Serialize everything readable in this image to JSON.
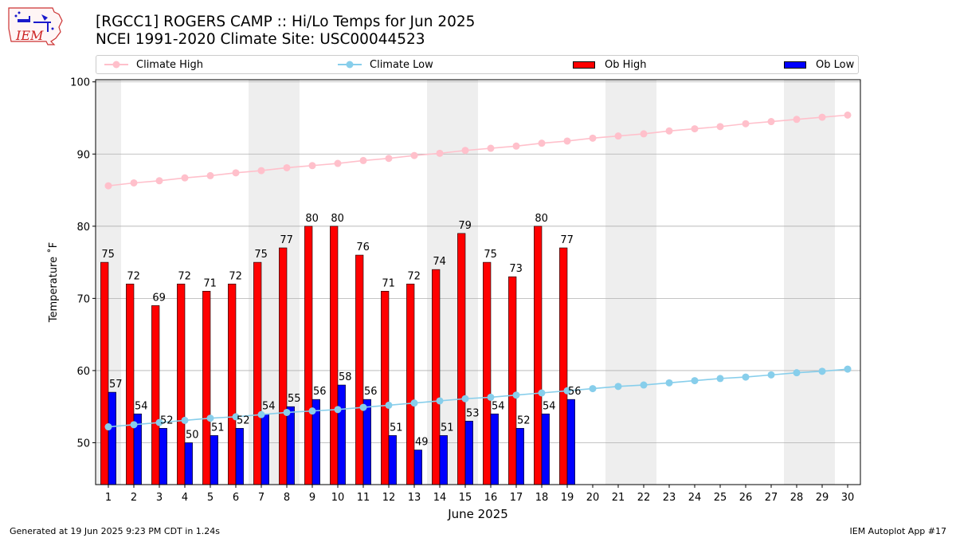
{
  "header": {
    "title_line1": "[RGCC1] ROGERS CAMP :: Hi/Lo Temps for Jun 2025",
    "title_line2": "NCEI 1991-2020 Climate Site: USC00044523",
    "logo_text": "IEM"
  },
  "legend": {
    "climate_high": "Climate High",
    "climate_low": "Climate Low",
    "ob_high": "Ob High",
    "ob_low": "Ob Low"
  },
  "footer": {
    "left": "Generated at 19 Jun 2025 9:23 PM CDT in 1.24s",
    "right": "IEM Autoplot App #17"
  },
  "colors": {
    "climate_high": "#ffc0cb",
    "climate_low": "#87ceeb",
    "ob_high": "#ff0000",
    "ob_low": "#0000ff",
    "weekend_shade": "#eeeeee",
    "grid": "#b0b0b0"
  },
  "chart_data": {
    "type": "bar",
    "xlabel": "June 2025",
    "ylabel": "Temperature $^\\circ$F",
    "xlim": [
      0.5,
      30.5
    ],
    "ylim": [
      44.2,
      100.3
    ],
    "yticks": [
      50,
      60,
      70,
      80,
      90,
      100
    ],
    "grid": "horizontal",
    "legend_position": "top",
    "days": [
      1,
      2,
      3,
      4,
      5,
      6,
      7,
      8,
      9,
      10,
      11,
      12,
      13,
      14,
      15,
      16,
      17,
      18,
      19,
      20,
      21,
      22,
      23,
      24,
      25,
      26,
      27,
      28,
      29,
      30
    ],
    "weekend_shade_ranges": [
      [
        0.5,
        1.5
      ],
      [
        6.5,
        8.5
      ],
      [
        13.5,
        15.5
      ],
      [
        20.5,
        22.5
      ],
      [
        27.5,
        29.5
      ]
    ],
    "series": [
      {
        "name": "Ob High",
        "kind": "bar",
        "x": [
          1,
          2,
          3,
          4,
          5,
          6,
          7,
          8,
          9,
          10,
          11,
          12,
          13,
          14,
          15,
          16,
          17,
          18,
          19
        ],
        "values": [
          75,
          72,
          69,
          72,
          71,
          72,
          75,
          77,
          80,
          80,
          76,
          71,
          72,
          74,
          79,
          75,
          73,
          80,
          77
        ],
        "labels": [
          "75",
          "72",
          "69",
          "72",
          "71",
          "72",
          "75",
          "77",
          "80",
          "80",
          "76",
          "71",
          "72",
          "74",
          "79",
          "75",
          "73",
          "80",
          "77"
        ]
      },
      {
        "name": "Ob Low",
        "kind": "bar",
        "x": [
          1,
          2,
          3,
          4,
          5,
          6,
          7,
          8,
          9,
          10,
          11,
          12,
          13,
          14,
          15,
          16,
          17,
          18,
          19
        ],
        "values": [
          57,
          54,
          52,
          50,
          51,
          52,
          54,
          55,
          56,
          58,
          56,
          51,
          49,
          51,
          53,
          54,
          52,
          54,
          56
        ],
        "labels": [
          "57",
          "54",
          "52",
          "50",
          "51",
          "52",
          "54",
          "55",
          "56",
          "58",
          "56",
          "51",
          "49",
          "51",
          "53",
          "54",
          "52",
          "54",
          "56"
        ]
      },
      {
        "name": "Climate High",
        "kind": "line",
        "x": [
          1,
          2,
          3,
          4,
          5,
          6,
          7,
          8,
          9,
          10,
          11,
          12,
          13,
          14,
          15,
          16,
          17,
          18,
          19,
          20,
          21,
          22,
          23,
          24,
          25,
          26,
          27,
          28,
          29,
          30
        ],
        "values": [
          85.6,
          86.0,
          86.3,
          86.7,
          87.0,
          87.4,
          87.7,
          88.1,
          88.4,
          88.7,
          89.1,
          89.4,
          89.8,
          90.1,
          90.5,
          90.8,
          91.1,
          91.5,
          91.8,
          92.2,
          92.5,
          92.8,
          93.2,
          93.5,
          93.8,
          94.2,
          94.5,
          94.8,
          95.1,
          95.4
        ]
      },
      {
        "name": "Climate Low",
        "kind": "line",
        "x": [
          1,
          2,
          3,
          4,
          5,
          6,
          7,
          8,
          9,
          10,
          11,
          12,
          13,
          14,
          15,
          16,
          17,
          18,
          19,
          20,
          21,
          22,
          23,
          24,
          25,
          26,
          27,
          28,
          29,
          30
        ],
        "values": [
          52.2,
          52.5,
          52.8,
          53.1,
          53.4,
          53.6,
          53.9,
          54.2,
          54.4,
          54.6,
          54.9,
          55.2,
          55.5,
          55.8,
          56.1,
          56.3,
          56.6,
          56.9,
          57.2,
          57.5,
          57.8,
          58.0,
          58.3,
          58.6,
          58.9,
          59.1,
          59.4,
          59.7,
          59.9,
          60.2
        ]
      }
    ]
  }
}
